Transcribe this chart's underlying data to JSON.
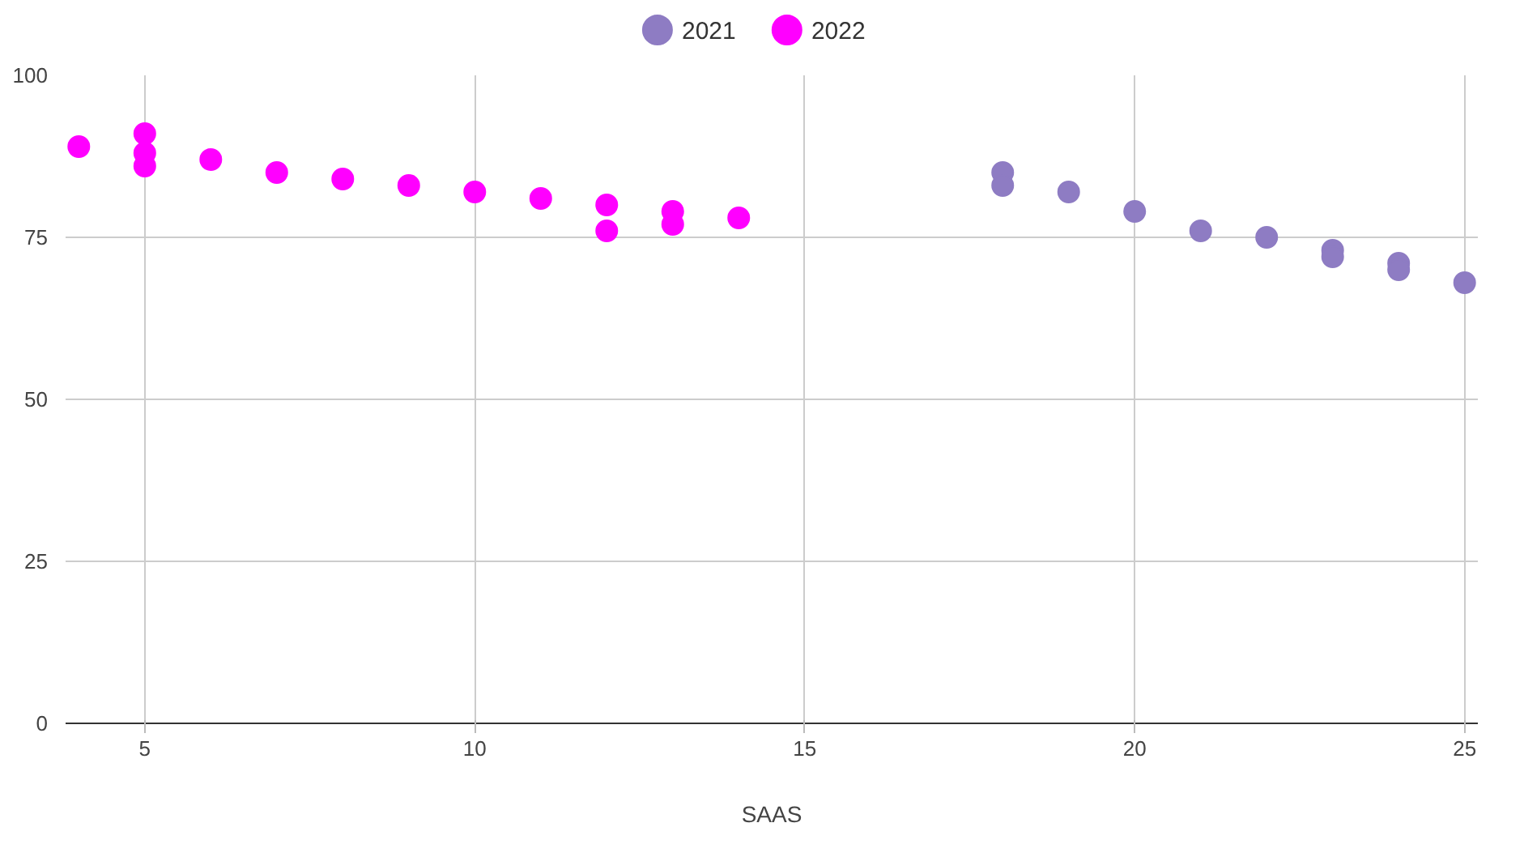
{
  "chart_data": {
    "type": "scatter",
    "xlabel": "SAAS",
    "xlim": [
      3.8,
      25.2
    ],
    "xticks": [
      5,
      10,
      15,
      20,
      25
    ],
    "ylim": [
      0,
      100
    ],
    "yticks": [
      0,
      25,
      50,
      75,
      100
    ],
    "grid": true,
    "legend": "top",
    "marker": "circle",
    "series": [
      {
        "name": "2021",
        "color": "#8e7cc3",
        "x": [
          18,
          18,
          19,
          20,
          21,
          22,
          23,
          23,
          24,
          24,
          25
        ],
        "values": [
          85,
          83,
          82,
          79,
          76,
          75,
          73,
          72,
          71,
          70,
          68
        ]
      },
      {
        "name": "2022",
        "color": "#ff00ff",
        "x": [
          4,
          5,
          5,
          5,
          6,
          7,
          8,
          9,
          10,
          11,
          12,
          12,
          13,
          13,
          14
        ],
        "values": [
          89,
          91,
          88,
          86,
          87,
          85,
          84,
          83,
          82,
          81,
          80,
          76,
          79,
          77,
          78
        ]
      }
    ]
  }
}
